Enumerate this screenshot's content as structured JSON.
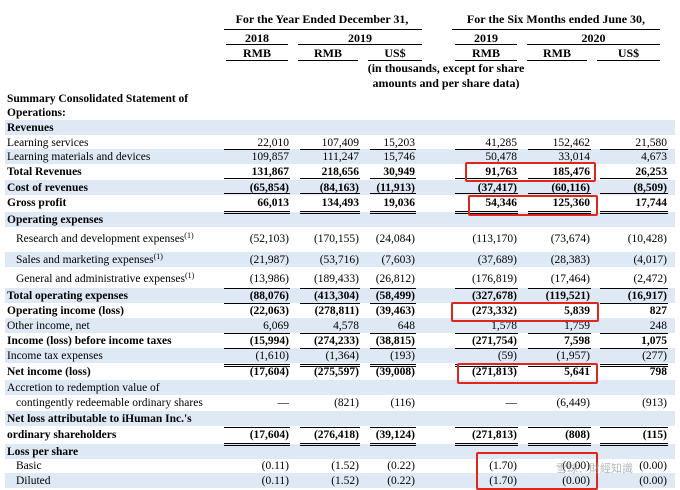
{
  "header": {
    "period_year": "For the Year Ended December 31,",
    "period_six": "For the Six Months ended June 30,",
    "years": [
      "2018",
      "2019",
      "2019",
      "2020"
    ],
    "currencies": [
      "RMB",
      "RMB",
      "US$",
      "RMB",
      "RMB",
      "US$"
    ],
    "note_line1": "(in thousands, except for share",
    "note_line2": "amounts and per share data)"
  },
  "title_line1": "Summary Consolidated Statement of",
  "title_line2": "Operations:",
  "rows": [
    {
      "label": "Revenues",
      "bold": true,
      "values": []
    },
    {
      "label": "Learning services",
      "values": [
        "22,010",
        "107,409",
        "15,203",
        "41,285",
        "152,462",
        "21,580"
      ]
    },
    {
      "label": "Learning materials and devices",
      "values": [
        "109,857",
        "111,247",
        "15,746",
        "50,478",
        "33,014",
        "4,673"
      ]
    },
    {
      "label": "Total Revenues",
      "bold": true,
      "values": [
        "131,867",
        "218,656",
        "30,949",
        "91,763",
        "185,476",
        "26,253"
      ]
    },
    {
      "label": "Cost of revenues",
      "bold": true,
      "values": [
        "(65,854)",
        "(84,163)",
        "(11,913)",
        "(37,417)",
        "(60,116)",
        "(8,509)"
      ]
    },
    {
      "label": "Gross profit",
      "bold": true,
      "values": [
        "66,013",
        "134,493",
        "19,036",
        "54,346",
        "125,360",
        "17,744"
      ]
    },
    {
      "label": "Operating expenses",
      "bold": true,
      "values": []
    },
    {
      "label": "Research and development expenses",
      "sup": "(1)",
      "indent": true,
      "values": [
        "(52,103)",
        "(170,155)",
        "(24,084)",
        "(113,170)",
        "(73,674)",
        "(10,428)"
      ]
    },
    {
      "label": "Sales and marketing expenses",
      "sup": "(1)",
      "indent": true,
      "values": [
        "(21,987)",
        "(53,716)",
        "(7,603)",
        "(37,689)",
        "(28,383)",
        "(4,017)"
      ]
    },
    {
      "label": "General and administrative expenses",
      "sup": "(1)",
      "indent": true,
      "values": [
        "(13,986)",
        "(189,433)",
        "(26,812)",
        "(176,819)",
        "(17,464)",
        "(2,472)"
      ]
    },
    {
      "label": "Total operating expenses",
      "bold": true,
      "values": [
        "(88,076)",
        "(413,304)",
        "(58,499)",
        "(327,678)",
        "(119,521)",
        "(16,917)"
      ]
    },
    {
      "label": "Operating income (loss)",
      "bold": true,
      "values": [
        "(22,063)",
        "(278,811)",
        "(39,463)",
        "(273,332)",
        "5,839",
        "827"
      ]
    },
    {
      "label": "Other income, net",
      "values": [
        "6,069",
        "4,578",
        "648",
        "1,578",
        "1,759",
        "248"
      ]
    },
    {
      "label": "Income (loss) before income taxes",
      "bold": true,
      "values": [
        "(15,994)",
        "(274,233)",
        "(38,815)",
        "(271,754)",
        "7,598",
        "1,075"
      ]
    },
    {
      "label": "Income tax expenses",
      "values": [
        "(1,610)",
        "(1,364)",
        "(193)",
        "(59)",
        "(1,957)",
        "(277)"
      ]
    },
    {
      "label": "Net income (loss)",
      "bold": true,
      "values": [
        "(17,604)",
        "(275,597)",
        "(39,008)",
        "(271,813)",
        "5,641",
        "798"
      ]
    },
    {
      "label": "Accretion to redemption value of",
      "values": []
    },
    {
      "label": "contingently redeemable ordinary shares",
      "indent": true,
      "values": [
        "—",
        "(821)",
        "(116)",
        "—",
        "(6,449)",
        "(913)"
      ]
    },
    {
      "label": "Net loss attributable to iHuman Inc.'s",
      "bold": true,
      "values": []
    },
    {
      "label": "ordinary shareholders",
      "bold": true,
      "values": [
        "(17,604)",
        "(276,418)",
        "(39,124)",
        "(271,813)",
        "(808)",
        "(115)"
      ]
    },
    {
      "label": "Loss per share",
      "bold": true,
      "values": []
    },
    {
      "label": "Basic",
      "indent": true,
      "values": [
        "(0.11)",
        "(1.52)",
        "(0.22)",
        "(1.70)",
        "(0.00)",
        "(0.00)"
      ]
    },
    {
      "label": "Diluted",
      "indent": true,
      "values": [
        "(0.11)",
        "(1.52)",
        "(0.22)",
        "(1.70)",
        "(0.00)",
        "(0.00)"
      ]
    }
  ],
  "watermark": "雪球：財經知識",
  "colors": {
    "row_band": "#dfe9f5",
    "highlight_box": "#e0261b"
  }
}
